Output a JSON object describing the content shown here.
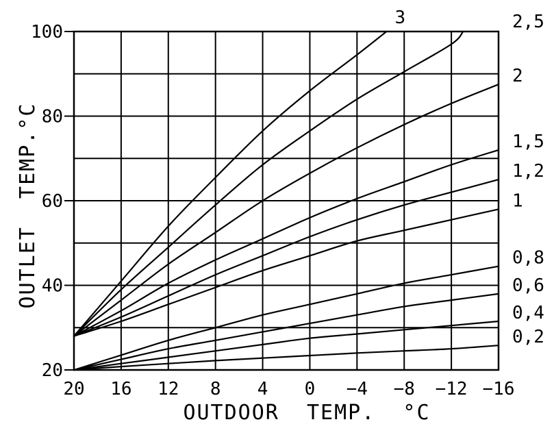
{
  "chart_data": {
    "type": "line",
    "xlabel": "OUTDOOR  TEMP.  °C",
    "ylabel": "OUTLET  TEMP.°C",
    "xlim": [
      20,
      -16
    ],
    "ylim": [
      20,
      100
    ],
    "x_ticks": [
      20,
      16,
      12,
      8,
      4,
      0,
      -4,
      -8,
      -12,
      -16
    ],
    "x_tick_labels": [
      "20",
      "16",
      "12",
      "8",
      "4",
      "0",
      "−4",
      "−8",
      "−12",
      "−16"
    ],
    "y_ticks": [
      20,
      40,
      60,
      80,
      100
    ],
    "y_tick_labels": [
      "20",
      "40",
      "60",
      "80",
      "100"
    ],
    "grid": true,
    "series": [
      {
        "name": "3",
        "x": [
          20,
          16,
          12,
          8,
          4,
          0,
          -4,
          -6.5
        ],
        "y": [
          28,
          41,
          54,
          65.5,
          76.5,
          86,
          94.5,
          100
        ]
      },
      {
        "name": "2,5",
        "x": [
          20,
          16,
          12,
          8,
          4,
          0,
          -4,
          -8,
          -12,
          -13
        ],
        "y": [
          28,
          39,
          49,
          59,
          68.5,
          76.5,
          84,
          90.5,
          97,
          100
        ]
      },
      {
        "name": "2",
        "x": [
          20,
          16,
          12,
          8,
          4,
          0,
          -4,
          -8,
          -12,
          -16
        ],
        "y": [
          28,
          36.5,
          45,
          52.5,
          60,
          66.5,
          72.5,
          78,
          83,
          87.5
        ]
      },
      {
        "name": "1,5",
        "x": [
          20,
          16,
          12,
          8,
          4,
          0,
          -4,
          -8,
          -12,
          -16
        ],
        "y": [
          28,
          34,
          40.5,
          46,
          51,
          56,
          60.5,
          64.5,
          68.5,
          72
        ]
      },
      {
        "name": "1,2",
        "x": [
          20,
          16,
          12,
          8,
          4,
          0,
          -4,
          -8,
          -12,
          -16
        ],
        "y": [
          28,
          32.5,
          37.5,
          42.5,
          47,
          51.5,
          55.5,
          59,
          62,
          65
        ]
      },
      {
        "name": "1",
        "x": [
          20,
          16,
          12,
          8,
          4,
          0,
          -4,
          -8,
          -12,
          -16
        ],
        "y": [
          28,
          31.5,
          35.5,
          39.5,
          43.5,
          47,
          50.5,
          53,
          55.5,
          58
        ]
      },
      {
        "name": "0,8",
        "x": [
          20,
          16,
          12,
          8,
          4,
          0,
          -4,
          -8,
          -12,
          -16
        ],
        "y": [
          20,
          23.5,
          27,
          30,
          33,
          35.5,
          38,
          40.5,
          42.5,
          44.5
        ]
      },
      {
        "name": "0,6",
        "x": [
          20,
          16,
          12,
          8,
          4,
          0,
          -4,
          -8,
          -12,
          -16
        ],
        "y": [
          20,
          22.5,
          25,
          27,
          29,
          31,
          33,
          35,
          36.5,
          38
        ]
      },
      {
        "name": "0,4",
        "x": [
          20,
          16,
          12,
          8,
          4,
          0,
          -4,
          -8,
          -12,
          -16
        ],
        "y": [
          20,
          21.5,
          23,
          24.5,
          26,
          27.5,
          28.5,
          29.5,
          30.5,
          31.5
        ]
      },
      {
        "name": "0,2",
        "x": [
          20,
          16,
          12,
          8,
          4,
          0,
          -4,
          -8,
          -12,
          -16
        ],
        "y": [
          20,
          20.8,
          21.5,
          22.2,
          22.8,
          23.4,
          24,
          24.5,
          25,
          25.8
        ]
      }
    ]
  }
}
